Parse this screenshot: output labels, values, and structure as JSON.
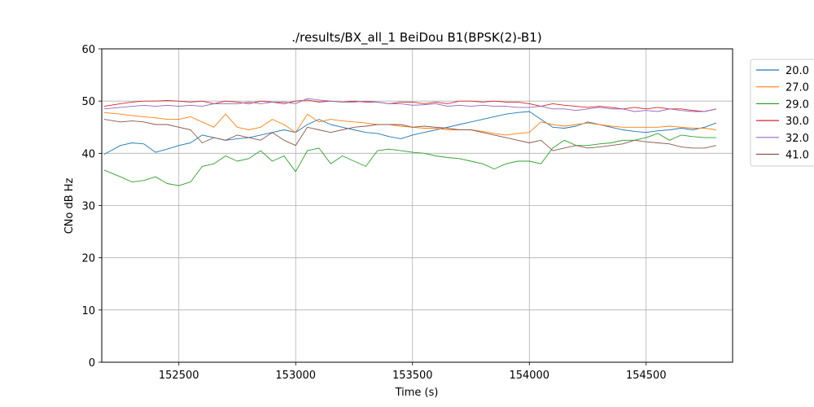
{
  "chart_data": {
    "type": "line",
    "title": "./results/BX_all_1 BeiDou B1(BPSK(2)-B1)",
    "xlabel": "Time (s)",
    "ylabel": "CNo dB Hz",
    "xlim": [
      152170,
      154870
    ],
    "ylim": [
      0,
      60
    ],
    "xticks": [
      152500,
      153000,
      153500,
      154000,
      154500
    ],
    "yticks": [
      0,
      10,
      20,
      30,
      40,
      50,
      60
    ],
    "grid": true,
    "legend_position": "right-outside-top",
    "x": [
      152180,
      152250,
      152300,
      152350,
      152400,
      152450,
      152500,
      152550,
      152600,
      152650,
      152700,
      152750,
      152800,
      152850,
      152900,
      152950,
      153000,
      153050,
      153100,
      153150,
      153200,
      153250,
      153300,
      153350,
      153400,
      153450,
      153500,
      153550,
      153600,
      153650,
      153700,
      153750,
      153800,
      153850,
      153900,
      153950,
      154000,
      154050,
      154100,
      154150,
      154200,
      154250,
      154300,
      154350,
      154400,
      154450,
      154500,
      154550,
      154600,
      154650,
      154700,
      154750,
      154800
    ],
    "series": [
      {
        "name": "20.0",
        "color": "#1f77b4",
        "values": [
          39.8,
          41.5,
          42.0,
          41.8,
          40.2,
          40.8,
          41.5,
          42.0,
          43.5,
          43.0,
          42.5,
          42.8,
          43.0,
          43.5,
          44.0,
          44.5,
          44.0,
          45.5,
          46.5,
          45.5,
          45.0,
          44.5,
          44.0,
          43.8,
          43.2,
          42.8,
          43.5,
          44.0,
          44.5,
          45.0,
          45.5,
          46.0,
          46.5,
          47.0,
          47.5,
          47.8,
          48.0,
          46.5,
          45.0,
          44.8,
          45.2,
          46.0,
          45.5,
          45.0,
          44.5,
          44.2,
          44.0,
          44.3,
          44.5,
          44.8,
          44.5,
          45.0,
          45.8
        ]
      },
      {
        "name": "27.0",
        "color": "#ff7f0e",
        "values": [
          47.8,
          47.5,
          47.2,
          47.0,
          46.8,
          46.5,
          46.5,
          47.0,
          46.0,
          45.0,
          47.5,
          45.0,
          44.5,
          45.0,
          46.5,
          45.5,
          44.0,
          47.5,
          46.0,
          46.5,
          46.2,
          46.0,
          45.8,
          45.5,
          45.5,
          45.2,
          45.0,
          44.8,
          44.8,
          44.5,
          44.5,
          44.5,
          44.2,
          43.8,
          43.5,
          43.8,
          44.0,
          46.0,
          45.5,
          45.2,
          45.5,
          45.8,
          45.5,
          45.2,
          45.0,
          45.0,
          45.0,
          45.0,
          45.2,
          45.0,
          44.8,
          44.8,
          44.5
        ]
      },
      {
        "name": "29.0",
        "color": "#2ca02c",
        "values": [
          36.8,
          35.5,
          34.5,
          34.8,
          35.5,
          34.2,
          33.8,
          34.5,
          37.5,
          38.0,
          39.5,
          38.5,
          39.0,
          40.5,
          38.5,
          39.5,
          36.5,
          40.5,
          41.0,
          38.0,
          39.5,
          38.5,
          37.5,
          40.5,
          40.8,
          40.5,
          40.2,
          40.0,
          39.5,
          39.2,
          39.0,
          38.5,
          38.0,
          37.0,
          38.0,
          38.5,
          38.5,
          38.0,
          41.0,
          42.5,
          41.5,
          41.5,
          41.8,
          42.0,
          42.5,
          42.5,
          43.0,
          43.8,
          42.5,
          43.5,
          43.2,
          43.0,
          43.0
        ]
      },
      {
        "name": "30.0",
        "color": "#d62728",
        "values": [
          49.0,
          49.5,
          49.8,
          50.0,
          50.0,
          50.1,
          50.0,
          49.8,
          50.0,
          49.5,
          50.0,
          49.8,
          49.5,
          50.0,
          49.8,
          49.5,
          50.0,
          50.2,
          49.8,
          50.0,
          49.8,
          50.0,
          49.8,
          49.8,
          49.5,
          49.8,
          49.8,
          49.5,
          49.8,
          49.5,
          50.0,
          50.0,
          49.8,
          50.0,
          49.8,
          49.8,
          49.5,
          49.0,
          49.5,
          49.2,
          49.0,
          48.8,
          49.0,
          48.8,
          48.5,
          48.8,
          48.5,
          48.8,
          48.5,
          48.5,
          48.2,
          48.0,
          48.5
        ]
      },
      {
        "name": "32.0",
        "color": "#9467bd",
        "values": [
          48.5,
          48.8,
          49.0,
          49.2,
          49.0,
          49.2,
          49.0,
          49.2,
          49.0,
          49.5,
          49.5,
          49.5,
          49.8,
          49.5,
          49.8,
          49.8,
          49.5,
          50.5,
          50.2,
          50.0,
          49.8,
          49.8,
          50.0,
          49.8,
          49.5,
          49.5,
          49.2,
          49.3,
          49.5,
          49.0,
          49.2,
          49.0,
          49.2,
          49.0,
          49.0,
          48.8,
          48.8,
          49.0,
          48.5,
          48.5,
          48.2,
          48.5,
          48.8,
          48.5,
          48.5,
          48.0,
          48.2,
          48.0,
          48.5,
          48.2,
          48.0,
          48.0,
          48.5
        ]
      },
      {
        "name": "41.0",
        "color": "#8c564b",
        "values": [
          46.5,
          46.0,
          46.2,
          46.0,
          45.5,
          45.5,
          45.0,
          44.5,
          42.0,
          43.0,
          42.5,
          43.5,
          43.0,
          42.5,
          44.0,
          42.5,
          41.5,
          45.0,
          44.5,
          44.0,
          44.5,
          45.0,
          45.2,
          45.5,
          45.5,
          45.5,
          45.0,
          45.2,
          45.0,
          44.8,
          44.5,
          44.5,
          44.0,
          43.5,
          43.0,
          42.5,
          42.0,
          42.5,
          40.5,
          41.0,
          41.5,
          41.0,
          41.2,
          41.5,
          41.8,
          42.5,
          42.2,
          42.0,
          41.8,
          41.2,
          41.0,
          41.0,
          41.5
        ]
      }
    ]
  }
}
